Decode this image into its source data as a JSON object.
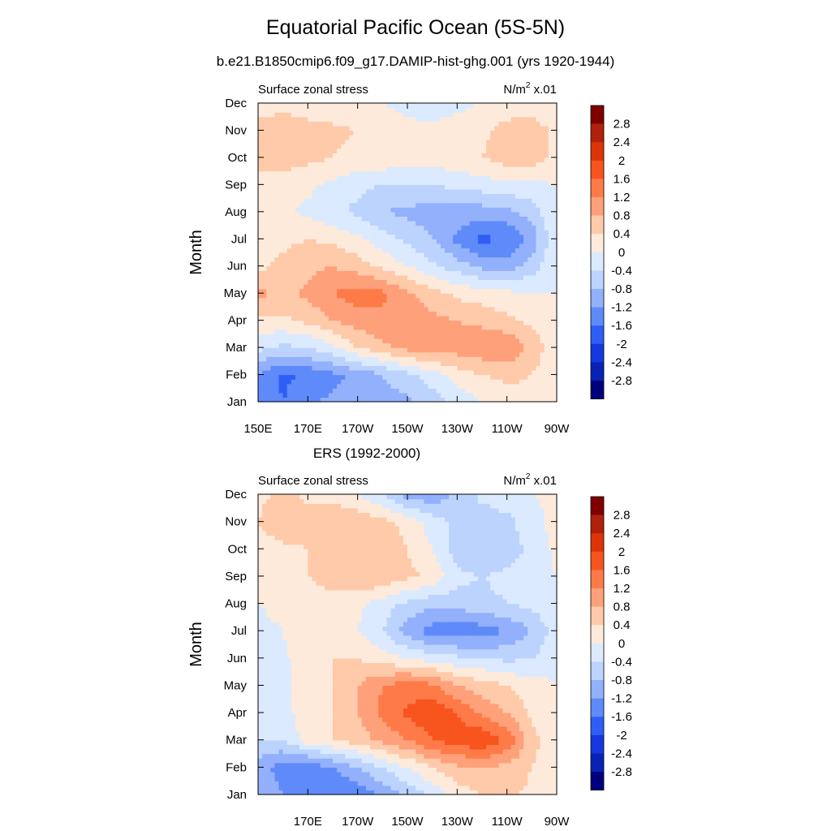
{
  "title": "Equatorial Pacific Ocean (5S-5N)",
  "subtitle": "b.e21.B1850cmip6.f09_g17.DAMIP-hist-ghg.001 (yrs 1920-1944)",
  "colorbar": {
    "labels": [
      "2.8",
      "2.4",
      "2",
      "1.6",
      "1.2",
      "0.8",
      "0.4",
      "0",
      "-0.4",
      "-0.8",
      "-1.2",
      "-1.6",
      "-2",
      "-2.4",
      "-2.8"
    ],
    "colors": [
      "#800000",
      "#b0200a",
      "#dd3508",
      "#f8541e",
      "#fe7b48",
      "#fea07a",
      "#fecaaa",
      "#feeadb",
      "#dbeafe",
      "#bcd3fe",
      "#92b0fb",
      "#5f8afa",
      "#2f5ef5",
      "#1538e0",
      "#0823b4",
      "#00007d"
    ]
  },
  "chart_data": [
    {
      "type": "heatmap",
      "title": "b.e21.B1850cmip6.f09_g17.DAMIP-hist-ghg.001 (yrs 1920-1944)",
      "left_label": "Surface zonal stress",
      "units_label": "N/m",
      "units_sup": "2",
      "units_scale": " x.01",
      "ylabel": "Month",
      "y_ticks": [
        "Jan",
        "Feb",
        "Mar",
        "Apr",
        "May",
        "Jun",
        "Jul",
        "Aug",
        "Sep",
        "Oct",
        "Nov",
        "Dec"
      ],
      "x_ticks": [
        "150E",
        "170E",
        "170W",
        "150W",
        "130W",
        "110W",
        "90W"
      ],
      "x_range_deg": [
        150,
        270
      ],
      "contour_levels": [
        -2.8,
        -2.4,
        -2,
        -1.6,
        -1.2,
        -0.8,
        -0.4,
        0,
        0.4,
        0.8,
        1.2,
        1.6,
        2,
        2.4,
        2.8
      ],
      "x_lon": [
        150,
        160,
        170,
        180,
        190,
        200,
        210,
        220,
        230,
        240,
        250,
        260,
        270
      ],
      "values": [
        [
          -1.3,
          -1.6,
          -1.3,
          -1.1,
          -1.0,
          -1.0,
          -0.9,
          -0.6,
          -0.3,
          0.0,
          0.2,
          0.3,
          0.0
        ],
        [
          -1.2,
          -1.7,
          -1.5,
          -1.3,
          -1.1,
          -0.8,
          -0.5,
          -0.2,
          0.2,
          0.4,
          0.5,
          0.4,
          0.0
        ],
        [
          -0.3,
          -0.5,
          -0.4,
          -0.1,
          0.4,
          0.7,
          0.9,
          1.1,
          1.0,
          1.1,
          1.2,
          0.7,
          0.1
        ],
        [
          0.3,
          0.3,
          0.5,
          0.8,
          1.0,
          1.1,
          1.1,
          0.9,
          0.8,
          0.7,
          0.5,
          0.3,
          0.0
        ],
        [
          0.9,
          0.7,
          0.9,
          1.2,
          1.4,
          1.3,
          0.9,
          0.6,
          0.3,
          0.2,
          0.1,
          0.0,
          0.0
        ],
        [
          0.3,
          0.5,
          0.7,
          0.8,
          0.6,
          0.3,
          0.0,
          -0.3,
          -0.6,
          -0.9,
          -1.0,
          -0.6,
          0.0
        ],
        [
          0.2,
          0.3,
          0.4,
          0.3,
          0.1,
          -0.2,
          -0.5,
          -0.8,
          -1.3,
          -1.7,
          -1.6,
          -1.1,
          0.0
        ],
        [
          0.1,
          0.1,
          -0.1,
          -0.3,
          -0.5,
          -0.8,
          -0.9,
          -1.0,
          -1.0,
          -1.0,
          -0.9,
          -0.6,
          0.0
        ],
        [
          0.3,
          0.2,
          0.1,
          -0.1,
          -0.3,
          -0.4,
          -0.4,
          -0.4,
          -0.3,
          -0.2,
          -0.1,
          -0.1,
          0.0
        ],
        [
          0.5,
          0.6,
          0.5,
          0.4,
          0.3,
          0.3,
          0.2,
          0.2,
          0.3,
          0.4,
          0.6,
          0.6,
          0.3
        ],
        [
          0.6,
          0.8,
          0.6,
          0.5,
          0.4,
          0.2,
          0.1,
          0.1,
          0.2,
          0.3,
          0.6,
          0.6,
          0.3
        ],
        [
          0.1,
          0.2,
          0.1,
          0.1,
          0.0,
          0.0,
          -0.1,
          -0.2,
          -0.1,
          0.0,
          0.1,
          0.2,
          0.1
        ]
      ]
    },
    {
      "type": "heatmap",
      "title": "ERS (1992-2000)",
      "left_label": "Surface zonal stress",
      "units_label": "N/m",
      "units_sup": "2",
      "units_scale": " x.01",
      "ylabel": "Month",
      "y_ticks": [
        "Jan",
        "Feb",
        "Mar",
        "Apr",
        "May",
        "Jun",
        "Jul",
        "Aug",
        "Sep",
        "Oct",
        "Nov",
        "Dec"
      ],
      "x_ticks": [
        "",
        "170E",
        "170W",
        "150W",
        "130W",
        "110W",
        "90W"
      ],
      "x_range_deg": [
        150,
        270
      ],
      "contour_levels": [
        -2.8,
        -2.4,
        -2,
        -1.6,
        -1.2,
        -0.8,
        -0.4,
        0,
        0.4,
        0.8,
        1.2,
        1.6,
        2,
        2.4,
        2.8
      ],
      "x_lon": [
        150,
        160,
        170,
        180,
        190,
        200,
        210,
        220,
        230,
        240,
        250,
        260,
        270
      ],
      "values": [
        [
          -0.8,
          -1.2,
          -1.3,
          -1.6,
          -1.5,
          -1.1,
          -0.7,
          -0.3,
          0.2,
          0.4,
          0.5,
          0.3,
          0.0
        ],
        [
          -1.0,
          -1.4,
          -1.5,
          -1.2,
          -0.8,
          -0.4,
          0.0,
          0.4,
          0.7,
          0.8,
          0.7,
          0.4,
          0.0
        ],
        [
          -0.4,
          -0.4,
          0.2,
          0.4,
          0.6,
          0.9,
          1.2,
          1.6,
          1.8,
          2.0,
          1.5,
          0.6,
          0.0
        ],
        [
          -0.3,
          -0.2,
          0.3,
          0.4,
          0.8,
          1.3,
          1.7,
          1.9,
          1.6,
          1.1,
          0.8,
          0.3,
          0.0
        ],
        [
          -0.2,
          -0.2,
          0.3,
          0.4,
          0.8,
          1.2,
          1.4,
          1.3,
          0.8,
          0.6,
          0.4,
          0.2,
          0.0
        ],
        [
          -0.3,
          -0.1,
          0.3,
          0.4,
          0.4,
          0.2,
          0.0,
          -0.2,
          -0.3,
          -0.4,
          -0.5,
          -0.4,
          -0.1
        ],
        [
          -0.1,
          0.0,
          0.3,
          0.4,
          0.0,
          -0.4,
          -1.0,
          -1.4,
          -1.5,
          -1.4,
          -1.2,
          -0.8,
          -0.2
        ],
        [
          0.0,
          0.1,
          0.3,
          0.3,
          0.1,
          -0.2,
          -0.5,
          -0.7,
          -0.6,
          -0.5,
          -0.4,
          -0.3,
          0.0
        ],
        [
          0.2,
          0.3,
          0.4,
          0.5,
          0.8,
          0.7,
          0.5,
          0.3,
          -0.3,
          -0.4,
          -0.3,
          -0.2,
          0.0
        ],
        [
          0.2,
          0.3,
          0.4,
          0.5,
          0.7,
          0.6,
          0.4,
          0.0,
          -0.6,
          -0.8,
          -0.6,
          -0.3,
          0.1
        ],
        [
          0.4,
          0.7,
          0.6,
          0.8,
          0.7,
          0.5,
          0.3,
          -0.2,
          -0.5,
          -0.6,
          -0.5,
          -0.2,
          0.2
        ],
        [
          0.3,
          0.5,
          0.3,
          0.2,
          0.0,
          -0.4,
          -1.0,
          -1.1,
          -0.7,
          -0.3,
          -0.2,
          0.0,
          0.1
        ]
      ]
    }
  ]
}
